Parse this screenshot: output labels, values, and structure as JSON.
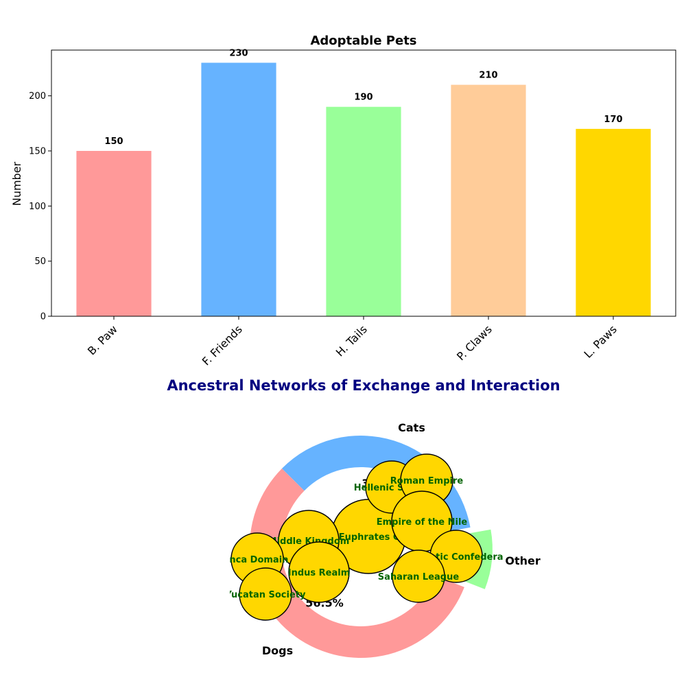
{
  "chart_data": [
    {
      "type": "bar",
      "title": "Adoptable Pets",
      "ylabel": "Number",
      "xlabel": "",
      "categories": [
        "B. Paw",
        "F. Friends",
        "H. Tails",
        "P. Claws",
        "L. Paws"
      ],
      "values": [
        150,
        230,
        190,
        210,
        170
      ],
      "colors": [
        "#ff9999",
        "#66b3ff",
        "#99ff99",
        "#ffcc99",
        "#ffd700"
      ],
      "ylim": [
        0,
        241.5
      ],
      "yticks": [
        0,
        50,
        100,
        150,
        200
      ],
      "grid": false,
      "data_labels": [
        "150",
        "230",
        "190",
        "210",
        "170"
      ]
    },
    {
      "type": "pie",
      "style": "donut",
      "title": "Ancestral Networks of Exchange and Interaction",
      "title_color": "#000080",
      "slices": [
        {
          "label": "Cats",
          "value": 34.8,
          "pct_label": "34.8%",
          "color": "#66b3ff"
        },
        {
          "label": "Dogs",
          "value": 56.5,
          "pct_label": "56.5%",
          "color": "#ff9999"
        },
        {
          "label": "Other",
          "value": 8.7,
          "pct_label": "8.7%",
          "color": "#99ff99"
        }
      ],
      "overlay_nodes": {
        "color": "#ffd700",
        "label_color": "#006400",
        "labels": [
          "Tigris-Euphrates Culture",
          "Hellenic States",
          "Roman Empire",
          "Empire of the Nile",
          "Atlantic Confedera",
          "Saharan League",
          "Middle Kingdom",
          "Indus Realm",
          "Inca Domain",
          "Yucatan Society"
        ]
      }
    }
  ]
}
